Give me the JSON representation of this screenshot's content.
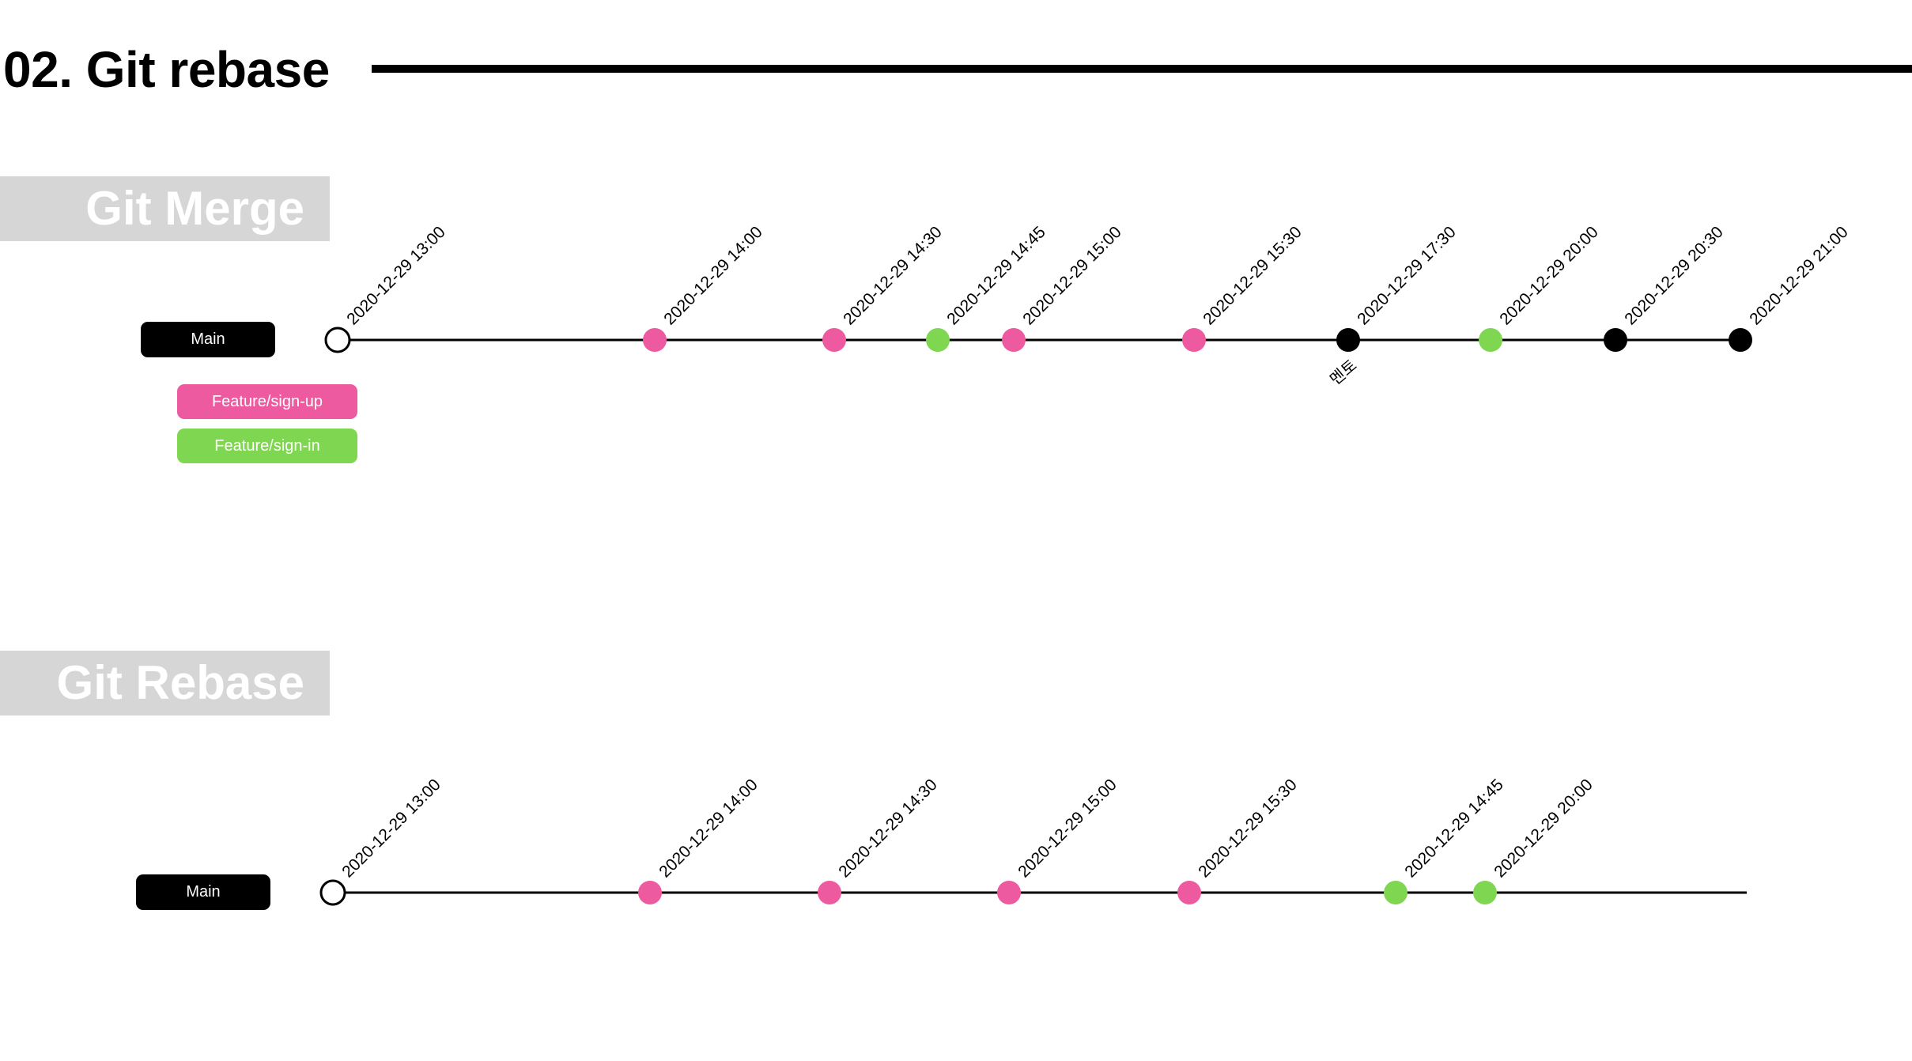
{
  "page": {
    "title": "02. Git rebase"
  },
  "colors": {
    "main": "#000000",
    "sign_up": "#ee5aa0",
    "sign_in": "#7fd650",
    "banner": "#d6d6d6",
    "origin_fill": "#ffffff"
  },
  "merge": {
    "section_title": "Git Merge",
    "legend": {
      "main": "Main",
      "sign_up": "Feature/sign-up",
      "sign_in": "Feature/sign-in"
    },
    "commits": [
      {
        "time": "2020-12-29 13:00",
        "branch": "origin"
      },
      {
        "time": "2020-12-29 14:00",
        "branch": "sign_up"
      },
      {
        "time": "2020-12-29 14:30",
        "branch": "sign_up"
      },
      {
        "time": "2020-12-29 14:45",
        "branch": "sign_in"
      },
      {
        "time": "2020-12-29 15:00",
        "branch": "sign_up"
      },
      {
        "time": "2020-12-29 15:30",
        "branch": "sign_up"
      },
      {
        "time": "2020-12-29 17:30",
        "branch": "main",
        "note": "멘토"
      },
      {
        "time": "2020-12-29 20:00",
        "branch": "sign_in"
      },
      {
        "time": "2020-12-29 20:30",
        "branch": "main"
      },
      {
        "time": "2020-12-29 21:00",
        "branch": "main"
      }
    ]
  },
  "rebase": {
    "section_title": "Git Rebase",
    "legend": {
      "main": "Main"
    },
    "commits": [
      {
        "time": "2020-12-29 13:00",
        "branch": "origin"
      },
      {
        "time": "2020-12-29 14:00",
        "branch": "sign_up"
      },
      {
        "time": "2020-12-29 14:30",
        "branch": "sign_up"
      },
      {
        "time": "2020-12-29 15:00",
        "branch": "sign_up"
      },
      {
        "time": "2020-12-29 15:30",
        "branch": "sign_up"
      },
      {
        "time": "2020-12-29 14:45",
        "branch": "sign_in"
      },
      {
        "time": "2020-12-29 20:00",
        "branch": "sign_in"
      }
    ]
  }
}
